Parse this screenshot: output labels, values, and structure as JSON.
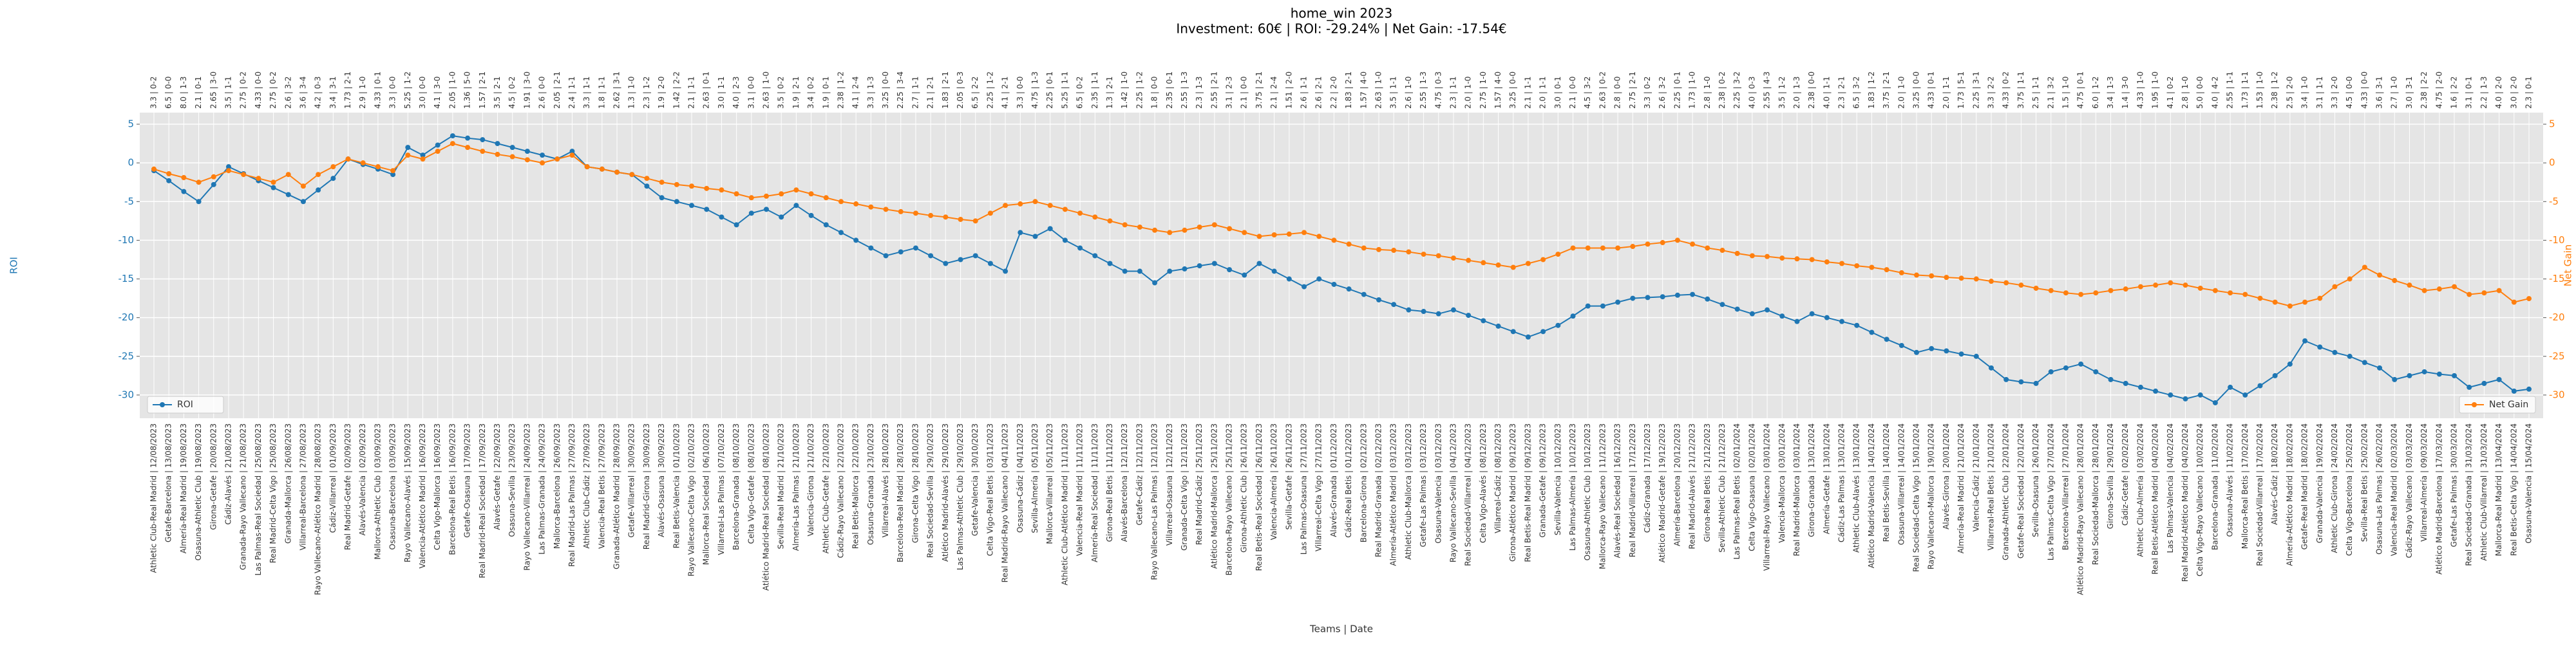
{
  "chart_data": {
    "type": "line",
    "title": "home_win 2023",
    "subtitle": "Investment: 60€ | ROI: -29.24% | Net Gain: -17.54€",
    "x_label": "Teams | Date",
    "y_label": "ROI",
    "y2_label": "Net Gain",
    "ylim": [
      -33,
      6.5
    ],
    "yticks": [
      5,
      0,
      -5,
      -10,
      -15,
      -20,
      -25,
      -30
    ],
    "y2lim": [
      -33,
      6.5
    ],
    "y2ticks": [
      5,
      0,
      -5,
      -10,
      -15,
      -20,
      -25,
      -30
    ],
    "grid": true,
    "background": "#e5e5e5",
    "categories": [
      "Athletic Club-Real Madrid | 12/08/2023",
      "Getafe-Barcelona | 13/08/2023",
      "Almería-Real Madrid | 19/08/2023",
      "Osasuna-Athletic Club | 19/08/2023",
      "Girona-Getafe | 20/08/2023",
      "Cádiz-Alavés | 21/08/2023",
      "Granada-Rayo Vallecano | 21/08/2023",
      "Las Palmas-Real Sociedad | 25/08/2023",
      "Real Madrid-Celta Vigo | 25/08/2023",
      "Granada-Mallorca | 26/08/2023",
      "Villarreal-Barcelona | 27/08/2023",
      "Rayo Vallecano-Atlético Madrid | 28/08/2023",
      "Cádiz-Villarreal | 01/09/2023",
      "Real Madrid-Getafe | 02/09/2023",
      "Alavés-Valencia | 02/09/2023",
      "Mallorca-Athletic Club | 03/09/2023",
      "Osasuna-Barcelona | 03/09/2023",
      "Rayo Vallecano-Alavés | 15/09/2023",
      "Valencia-Atlético Madrid | 16/09/2023",
      "Celta Vigo-Mallorca | 16/09/2023",
      "Barcelona-Real Betis | 16/09/2023",
      "Getafe-Osasuna | 17/09/2023",
      "Real Madrid-Real Sociedad | 17/09/2023",
      "Alavés-Getafe | 22/09/2023",
      "Osasuna-Sevilla | 23/09/2023",
      "Rayo Vallecano-Villarreal | 24/09/2023",
      "Las Palmas-Granada | 24/09/2023",
      "Mallorca-Barcelona | 26/09/2023",
      "Real Madrid-Las Palmas | 27/09/2023",
      "Athletic Club-Cádiz | 27/09/2023",
      "Valencia-Real Betis | 27/09/2023",
      "Granada-Atlético Madrid | 28/09/2023",
      "Getafe-Villarreal | 30/09/2023",
      "Real Madrid-Girona | 30/09/2023",
      "Alavés-Osasuna | 30/09/2023",
      "Real Betis-Valencia | 01/10/2023",
      "Rayo Vallecano-Celta Vigo | 02/10/2023",
      "Mallorca-Real Sociedad | 06/10/2023",
      "Villarreal-Las Palmas | 07/10/2023",
      "Barcelona-Granada | 08/10/2023",
      "Celta Vigo-Getafe | 08/10/2023",
      "Atlético Madrid-Real Sociedad | 08/10/2023",
      "Sevilla-Real Madrid | 21/10/2023",
      "Almería-Las Palmas | 21/10/2023",
      "Valencia-Girona | 21/10/2023",
      "Athletic Club-Getafe | 22/10/2023",
      "Cádiz-Rayo Vallecano | 22/10/2023",
      "Real Betis-Mallorca | 22/10/2023",
      "Osasuna-Granada | 23/10/2023",
      "Villarreal-Alavés | 28/10/2023",
      "Barcelona-Real Madrid | 28/10/2023",
      "Girona-Celta Vigo | 28/10/2023",
      "Real Sociedad-Sevilla | 29/10/2023",
      "Atlético Madrid-Alavés | 29/10/2023",
      "Las Palmas-Athletic Club | 29/10/2023",
      "Getafe-Valencia | 30/10/2023",
      "Celta Vigo-Real Betis | 03/11/2023",
      "Real Madrid-Rayo Vallecano | 04/11/2023",
      "Osasuna-Cádiz | 04/11/2023",
      "Sevilla-Almería | 05/11/2023",
      "Mallorca-Villarreal | 05/11/2023",
      "Athletic Club-Atlético Madrid | 11/11/2023",
      "Valencia-Real Madrid | 11/11/2023",
      "Almería-Real Sociedad | 11/11/2023",
      "Girona-Real Betis | 11/11/2023",
      "Alavés-Barcelona | 12/11/2023",
      "Getafe-Cádiz | 12/11/2023",
      "Rayo Vallecano-Las Palmas | 12/11/2023",
      "Villarreal-Osasuna | 12/11/2023",
      "Granada-Celta Vigo | 12/11/2023",
      "Real Madrid-Cádiz | 25/11/2023",
      "Atlético Madrid-Mallorca | 25/11/2023",
      "Barcelona-Rayo Vallecano | 25/11/2023",
      "Girona-Athletic Club | 26/11/2023",
      "Real Betis-Real Sociedad | 26/11/2023",
      "Valencia-Almería | 26/11/2023",
      "Sevilla-Getafe | 26/11/2023",
      "Las Palmas-Osasuna | 27/11/2023",
      "Villarreal-Celta Vigo | 27/11/2023",
      "Alavés-Granada | 01/12/2023",
      "Cádiz-Real Betis | 01/12/2023",
      "Barcelona-Girona | 02/12/2023",
      "Real Madrid-Granada | 02/12/2023",
      "Almería-Atlético Madrid | 03/12/2023",
      "Athletic Club-Mallorca | 03/12/2023",
      "Getafe-Las Palmas | 03/12/2023",
      "Osasuna-Valencia | 03/12/2023",
      "Rayo Vallecano-Sevilla | 04/12/2023",
      "Real Sociedad-Villarreal | 04/12/2023",
      "Celta Vigo-Alavés | 08/12/2023",
      "Villarreal-Cádiz | 08/12/2023",
      "Girona-Atlético Madrid | 09/12/2023",
      "Real Betis-Real Madrid | 09/12/2023",
      "Granada-Getafe | 09/12/2023",
      "Sevilla-Valencia | 10/12/2023",
      "Las Palmas-Almería | 10/12/2023",
      "Osasuna-Athletic Club | 10/12/2023",
      "Mallorca-Rayo Vallecano | 11/12/2023",
      "Alavés-Real Sociedad | 16/12/2023",
      "Real Madrid-Villarreal | 17/12/2023",
      "Cádiz-Granada | 17/12/2023",
      "Atlético Madrid-Getafe | 19/12/2023",
      "Almería-Barcelona | 20/12/2023",
      "Real Madrid-Alavés | 21/12/2023",
      "Girona-Real Betis | 21/12/2023",
      "Sevilla-Athletic Club | 21/12/2023",
      "Las Palmas-Real Betis | 02/01/2024",
      "Celta Vigo-Osasuna | 02/01/2024",
      "Villarreal-Rayo Vallecano | 03/01/2024",
      "Valencia-Mallorca | 03/01/2024",
      "Real Madrid-Mallorca | 03/01/2024",
      "Girona-Granada | 13/01/2024",
      "Almería-Getafe | 13/01/2024",
      "Cádiz-Las Palmas | 13/01/2024",
      "Athletic Club-Alavés | 13/01/2024",
      "Atlético Madrid-Valencia | 14/01/2024",
      "Real Betis-Sevilla | 14/01/2024",
      "Osasuna-Villarreal | 14/01/2024",
      "Real Sociedad-Celta Vigo | 15/01/2024",
      "Rayo Vallecano-Mallorca | 19/01/2024",
      "Alavés-Girona | 20/01/2024",
      "Almería-Real Madrid | 21/01/2024",
      "Valencia-Cádiz | 21/01/2024",
      "Villarreal-Real Betis | 21/01/2024",
      "Granada-Athletic Club | 22/01/2024",
      "Getafe-Real Sociedad | 22/01/2024",
      "Sevilla-Osasuna | 26/01/2024",
      "Las Palmas-Celta Vigo | 27/01/2024",
      "Barcelona-Villarreal | 27/01/2024",
      "Atlético Madrid-Rayo Vallecano | 28/01/2024",
      "Real Sociedad-Mallorca | 28/01/2024",
      "Girona-Sevilla | 29/01/2024",
      "Cádiz-Getafe | 02/02/2024",
      "Athletic Club-Almería | 03/02/2024",
      "Real Betis-Atlético Madrid | 04/02/2024",
      "Las Palmas-Valencia | 04/02/2024",
      "Real Madrid-Atlético Madrid | 04/02/2024",
      "Celta Vigo-Rayo Vallecano | 10/02/2024",
      "Barcelona-Granada | 11/02/2024",
      "Osasuna-Alavés | 11/02/2024",
      "Mallorca-Real Betis | 17/02/2024",
      "Real Sociedad-Villarreal | 17/02/2024",
      "Alavés-Cádiz | 18/02/2024",
      "Almería-Atlético Madrid | 18/02/2024",
      "Getafe-Real Madrid | 18/02/2024",
      "Granada-Valencia | 19/02/2024",
      "Athletic Club-Girona | 24/02/2024",
      "Celta Vigo-Barcelona | 25/02/2024",
      "Sevilla-Real Betis | 25/02/2024",
      "Osasuna-Las Palmas | 26/02/2024",
      "Valencia-Real Madrid | 02/03/2024",
      "Cádiz-Rayo Vallecano | 03/03/2024",
      "Villarreal-Almería | 09/03/2024",
      "Atlético Madrid-Barcelona | 17/03/2024",
      "Getafe-Las Palmas | 30/03/2024",
      "Real Sociedad-Granada | 31/03/2024",
      "Athletic Club-Villarreal | 31/03/2024",
      "Mallorca-Real Madrid | 13/04/2024",
      "Real Betis-Celta Vigo | 14/04/2024",
      "Osasuna-Valencia | 15/04/2024"
    ],
    "top_labels": [
      "3.3 | 0-2",
      "6.5 | 0-0",
      "8.0 | 1-3",
      "2.1 | 0-1",
      "2.65 | 3-0",
      "3.5 | 1-1",
      "2.75 | 0-2",
      "4.33 | 0-0",
      "2.75 | 0-2",
      "2.6 | 3-2",
      "3.6 | 3-4",
      "4.2 | 0-3",
      "3.4 | 3-1",
      "1.73 | 2-1",
      "2.9 | 1-0",
      "4.33 | 0-1",
      "3.3 | 0-0",
      "5.25 | 1-2",
      "3.0 | 0-0",
      "4.1 | 3-0",
      "2.05 | 1-0",
      "1.36 | 5-0",
      "1.57 | 2-1",
      "3.5 | 2-1",
      "4.5 | 0-2",
      "1.91 | 3-0",
      "2.6 | 0-0",
      "2.05 | 2-1",
      "2.4 | 1-1",
      "3.3 | 1-1",
      "1.8 | 1-1",
      "2.62 | 3-1",
      "1.3 | 1-0",
      "2.3 | 1-2",
      "1.9 | 2-0",
      "1.42 | 2-2",
      "2.1 | 1-1",
      "2.63 | 0-1",
      "3.0 | 1-1",
      "4.0 | 2-3",
      "3.1 | 0-0",
      "2.63 | 1-0",
      "3.5 | 0-2",
      "1.9 | 2-1",
      "3.4 | 0-2",
      "1.9 | 0-1",
      "2.38 | 1-2",
      "4.1 | 2-4",
      "3.3 | 1-3",
      "3.25 | 0-0",
      "2.25 | 3-4",
      "2.7 | 1-1",
      "2.1 | 2-1",
      "1.83 | 2-1",
      "2.05 | 0-3",
      "6.5 | 2-2",
      "2.25 | 1-2",
      "4.1 | 2-1",
      "3.3 | 0-0",
      "4.75 | 1-3",
      "2.25 | 0-1",
      "5.25 | 1-1",
      "6.5 | 0-2",
      "2.35 | 1-1",
      "1.3 | 2-1",
      "1.42 | 1-0",
      "2.25 | 1-2",
      "1.8 | 0-0",
      "2.35 | 0-1",
      "2.55 | 1-3",
      "2.3 | 1-3",
      "2.55 | 2-1",
      "3.1 | 2-3",
      "2.1 | 0-0",
      "3.75 | 2-1",
      "2.1 | 2-4",
      "1.51 | 2-0",
      "2.6 | 1-1",
      "2.6 | 2-1",
      "2.2 | 2-0",
      "1.83 | 2-1",
      "1.57 | 4-0",
      "2.63 | 1-0",
      "3.5 | 1-1",
      "2.6 | 1-0",
      "2.55 | 1-3",
      "4.75 | 0-3",
      "2.3 | 1-1",
      "2.0 | 1-0",
      "2.75 | 1-0",
      "1.57 | 4-0",
      "3.25 | 0-0",
      "2.1 | 1-1",
      "2.0 | 1-1",
      "3.0 | 0-1",
      "2.1 | 0-0",
      "4.5 | 3-2",
      "2.63 | 0-2",
      "2.8 | 0-0",
      "2.75 | 2-1",
      "3.3 | 0-2",
      "2.6 | 3-2",
      "2.25 | 0-1",
      "1.73 | 1-0",
      "2.8 | 1-0",
      "2.38 | 0-2",
      "2.25 | 3-2",
      "4.0 | 0-3",
      "2.55 | 4-3",
      "3.5 | 1-2",
      "2.0 | 1-3",
      "2.38 | 0-0",
      "4.0 | 1-1",
      "2.3 | 2-1",
      "6.5 | 3-2",
      "1.83 | 1-2",
      "3.75 | 2-1",
      "2.0 | 1-0",
      "3.25 | 0-0",
      "4.33 | 0-1",
      "2.0 | 1-1",
      "1.73 | 5-1",
      "2.25 | 3-1",
      "3.3 | 2-2",
      "4.33 | 0-2",
      "3.75 | 1-1",
      "2.5 | 1-1",
      "2.1 | 3-2",
      "1.5 | 1-0",
      "4.75 | 0-1",
      "6.0 | 1-2",
      "3.4 | 1-3",
      "1.4 | 3-0",
      "4.33 | 1-0",
      "1.95 | 1-0",
      "4.1 | 0-2",
      "2.8 | 1-0",
      "5.0 | 0-0",
      "4.0 | 4-2",
      "2.55 | 1-1",
      "1.73 | 1-1",
      "1.53 | 1-0",
      "2.38 | 1-2",
      "2.5 | 2-0",
      "3.4 | 1-0",
      "3.1 | 1-1",
      "3.3 | 2-0",
      "4.5 | 0-0",
      "4.33 | 0-0",
      "3.6 | 3-1",
      "2.7 | 1-0",
      "3.0 | 3-1",
      "2.38 | 2-2",
      "4.75 | 2-0",
      "1.6 | 2-2",
      "3.1 | 0-1",
      "2.2 | 1-3",
      "4.0 | 2-0",
      "3.0 | 2-0",
      "2.3 | 0-1"
    ],
    "series": [
      {
        "name": "ROI",
        "color": "#1f77b4",
        "axis": "y",
        "legend": "lower left",
        "values": [
          -1,
          -2.3,
          -3.7,
          -5,
          -2.8,
          -0.5,
          -1.4,
          -2.3,
          -3.2,
          -4.1,
          -5,
          -3.5,
          -2,
          0.5,
          -0.2,
          -0.8,
          -1.5,
          2,
          1,
          2.3,
          3.5,
          3.2,
          3,
          2.5,
          2,
          1.5,
          1,
          0.5,
          1.5,
          -0.5,
          -0.8,
          -1.2,
          -1.5,
          -3,
          -4.5,
          -5,
          -5.5,
          -6,
          -7,
          -8,
          -6.5,
          -6,
          -7,
          -5.5,
          -6.8,
          -8,
          -9,
          -10,
          -11,
          -12,
          -11.5,
          -11,
          -12,
          -13,
          -12.5,
          -12,
          -13,
          -14,
          -9,
          -9.5,
          -8.5,
          -10,
          -11,
          -12,
          -13,
          -14,
          -14,
          -15.5,
          -14,
          -13.7,
          -13.3,
          -13,
          -13.8,
          -14.5,
          -13,
          -14,
          -15,
          -16,
          -15,
          -15.7,
          -16.3,
          -17,
          -17.7,
          -18.3,
          -19,
          -19.2,
          -19.5,
          -19,
          -19.7,
          -20.4,
          -21.1,
          -21.8,
          -22.5,
          -21.8,
          -21,
          -19.8,
          -18.5,
          -18.5,
          -18,
          -17.5,
          -17.4,
          -17.3,
          -17.1,
          -17,
          -17.6,
          -18.3,
          -18.9,
          -19.5,
          -19,
          -19.8,
          -20.5,
          -19.5,
          -20,
          -20.5,
          -21,
          -21.9,
          -22.8,
          -23.6,
          -24.5,
          -24,
          -24.3,
          -24.7,
          -25,
          -26.5,
          -28,
          -28.3,
          -28.5,
          -27,
          -26.5,
          -26,
          -27,
          -28,
          -28.5,
          -29,
          -29.5,
          -30,
          -30.5,
          -30,
          -31,
          -29,
          -30,
          -28.8,
          -27.5,
          -26,
          -23,
          -23.8,
          -24.5,
          -25,
          -25.8,
          -26.5,
          -28,
          -27.5,
          -27,
          -27.3,
          -27.5,
          -29,
          -28.5,
          -28,
          -29.5,
          -29.24
        ]
      },
      {
        "name": "Net Gain",
        "color": "#ff7f0e",
        "axis": "y2",
        "legend": "lower right",
        "values": [
          -0.8,
          -1.4,
          -1.9,
          -2.5,
          -1.8,
          -1,
          -1.5,
          -2,
          -2.5,
          -1.5,
          -3,
          -1.5,
          -0.5,
          0.5,
          0,
          -0.5,
          -1,
          1,
          0.5,
          1.5,
          2.5,
          2,
          1.5,
          1.1,
          0.8,
          0.4,
          0,
          0.5,
          1,
          -0.5,
          -0.8,
          -1.2,
          -1.5,
          -2,
          -2.5,
          -2.8,
          -3,
          -3.3,
          -3.5,
          -4,
          -4.5,
          -4.3,
          -4,
          -3.5,
          -4,
          -4.5,
          -5,
          -5.3,
          -5.7,
          -6,
          -6.3,
          -6.5,
          -6.8,
          -7,
          -7.3,
          -7.5,
          -6.5,
          -5.5,
          -5.3,
          -5,
          -5.5,
          -6,
          -6.5,
          -7,
          -7.5,
          -8,
          -8.3,
          -8.7,
          -9,
          -8.7,
          -8.3,
          -8,
          -8.5,
          -9,
          -9.5,
          -9.3,
          -9.2,
          -9,
          -9.5,
          -10,
          -10.5,
          -11,
          -11.2,
          -11.3,
          -11.5,
          -11.8,
          -12,
          -12.3,
          -12.6,
          -12.9,
          -13.2,
          -13.5,
          -13,
          -12.5,
          -11.8,
          -11,
          -11,
          -11,
          -11,
          -10.8,
          -10.5,
          -10.3,
          -10,
          -10.5,
          -11,
          -11.3,
          -11.7,
          -12,
          -12.1,
          -12.3,
          -12.4,
          -12.5,
          -12.8,
          -13,
          -13.3,
          -13.5,
          -13.8,
          -14.2,
          -14.5,
          -14.6,
          -14.8,
          -14.9,
          -15,
          -15.3,
          -15.5,
          -15.8,
          -16.2,
          -16.5,
          -16.8,
          -17,
          -16.8,
          -16.5,
          -16.3,
          -16,
          -15.8,
          -15.5,
          -15.8,
          -16.2,
          -16.5,
          -16.8,
          -17,
          -17.5,
          -18,
          -18.5,
          -18,
          -17.5,
          -16,
          -15,
          -13.5,
          -14.5,
          -15.2,
          -15.8,
          -16.5,
          -16.3,
          -16,
          -17,
          -16.8,
          -16.5,
          -18,
          -17.54
        ]
      }
    ]
  }
}
